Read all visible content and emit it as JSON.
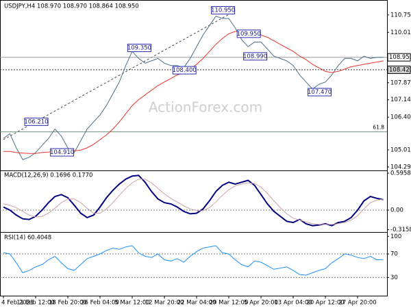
{
  "chart_data": [
    {
      "type": "line",
      "title": "USDJPY,H4 108.970 108.970 108.864 108.950",
      "watermark": "ActionForex.com",
      "ylim": [
        104.17,
        111.24
      ],
      "yticks": [
        {
          "value": 110.75,
          "label": "110.750"
        },
        {
          "value": 110.01,
          "label": "110.010"
        },
        {
          "value": 107.87,
          "label": "107.870"
        },
        {
          "value": 107.145,
          "label": "107.145"
        },
        {
          "value": 106.405,
          "label": "106.405"
        },
        {
          "value": 105.015,
          "label": "105.015"
        },
        {
          "value": 104.29,
          "label": "104.290"
        }
      ],
      "series": [
        {
          "color": "#4a6f84",
          "values": [
            105.5,
            105.7,
            105.1,
            104.6,
            104.7,
            104.9,
            105.2,
            105.5,
            105.9,
            105.6,
            105.1,
            104.9,
            105.4,
            105.9,
            106.2,
            106.5,
            106.9,
            107.4,
            107.9,
            108.6,
            109.2,
            108.9,
            108.7,
            108.8,
            108.9,
            108.7,
            108.6,
            108.6,
            108.5,
            108.9,
            109.4,
            109.9,
            110.3,
            110.7,
            110.6,
            110.6,
            110.2,
            109.7,
            109.4,
            109.6,
            109.6,
            109.3,
            109.0,
            108.9,
            108.8,
            108.6,
            108.2,
            107.9,
            107.6,
            107.8,
            107.9,
            108.2,
            108.6,
            108.9,
            108.9,
            108.8,
            109.0,
            108.9,
            108.95,
            108.95
          ]
        },
        {
          "color": "#e8342c",
          "values": [
            104.95,
            104.95,
            104.9,
            104.88,
            104.86,
            104.86,
            104.9,
            104.92,
            104.97,
            105.0,
            105.0,
            104.98,
            105.0,
            105.1,
            105.25,
            105.45,
            105.65,
            105.9,
            106.2,
            106.55,
            106.9,
            107.15,
            107.35,
            107.55,
            107.75,
            107.9,
            108.05,
            108.2,
            108.3,
            108.45,
            108.65,
            108.9,
            109.2,
            109.5,
            109.75,
            109.95,
            110.05,
            110.05,
            110.0,
            109.95,
            109.9,
            109.8,
            109.65,
            109.5,
            109.35,
            109.2,
            109.0,
            108.85,
            108.65,
            108.5,
            108.35,
            108.3,
            108.35,
            108.45,
            108.55,
            108.6,
            108.65,
            108.7,
            108.75,
            108.8
          ]
        }
      ],
      "annotations": [
        {
          "value": 110.95,
          "label": "110.950"
        },
        {
          "value": 109.35,
          "label": "109.350"
        },
        {
          "value": 108.4,
          "label": "108.400"
        },
        {
          "value": 106.21,
          "label": "106.210"
        },
        {
          "value": 104.91,
          "label": "104.910"
        },
        {
          "value": 109.95,
          "label": "109.950"
        },
        {
          "value": 108.99,
          "label": "108.990"
        },
        {
          "value": 107.47,
          "label": "107.470"
        }
      ],
      "levels": [
        {
          "value": 108.95,
          "label": "108.950"
        },
        {
          "value": 108.42,
          "label": "108.420"
        },
        {
          "value": 105.78,
          "label": "61.8"
        }
      ]
    },
    {
      "type": "line",
      "title": "MACD(12,26,9) 0.1696 0.1770",
      "ylim": [
        -0.342,
        0.618
      ],
      "yticks": [
        0.5958,
        {
          "value": 0,
          "label": "0.00"
        },
        -0.3158
      ],
      "series": [
        {
          "color": "#000080",
          "values": [
            0.05,
            0.0,
            -0.08,
            -0.14,
            -0.15,
            -0.1,
            0.0,
            0.12,
            0.22,
            0.25,
            0.2,
            0.08,
            -0.05,
            -0.12,
            -0.08,
            0.05,
            0.2,
            0.32,
            0.42,
            0.5,
            0.55,
            0.56,
            0.45,
            0.3,
            0.18,
            0.12,
            0.1,
            0.05,
            -0.02,
            -0.06,
            -0.05,
            0.02,
            0.15,
            0.3,
            0.4,
            0.45,
            0.42,
            0.45,
            0.48,
            0.4,
            0.25,
            0.1,
            -0.02,
            -0.1,
            -0.18,
            -0.2,
            -0.15,
            -0.22,
            -0.25,
            -0.24,
            -0.22,
            -0.25,
            -0.2,
            -0.18,
            -0.12,
            0.0,
            0.15,
            0.22,
            0.19,
            0.17
          ]
        },
        {
          "color": "#c9a3a3",
          "values": [
            0.1,
            0.08,
            0.04,
            -0.02,
            -0.08,
            -0.11,
            -0.1,
            -0.05,
            0.03,
            0.12,
            0.18,
            0.18,
            0.12,
            0.03,
            -0.05,
            -0.05,
            0.02,
            0.12,
            0.24,
            0.35,
            0.44,
            0.5,
            0.5,
            0.44,
            0.35,
            0.26,
            0.19,
            0.13,
            0.07,
            0.02,
            -0.01,
            -0.01,
            0.04,
            0.13,
            0.24,
            0.33,
            0.39,
            0.42,
            0.44,
            0.43,
            0.37,
            0.27,
            0.15,
            0.04,
            -0.06,
            -0.13,
            -0.16,
            -0.19,
            -0.22,
            -0.23,
            -0.23,
            -0.23,
            -0.22,
            -0.2,
            -0.16,
            -0.09,
            0.02,
            0.12,
            0.16,
            0.177
          ]
        }
      ]
    },
    {
      "type": "line",
      "title": "RSI(14) 60.4048",
      "ylim": [
        -1,
        105
      ],
      "yticks": [
        100,
        70,
        30
      ],
      "series": [
        {
          "color": "#1e90ff",
          "values": [
            72,
            70,
            55,
            38,
            42,
            48,
            52,
            60,
            66,
            55,
            45,
            42,
            52,
            62,
            66,
            70,
            76,
            80,
            78,
            82,
            84,
            72,
            66,
            64,
            70,
            60,
            58,
            62,
            56,
            66,
            74,
            80,
            82,
            84,
            72,
            70,
            60,
            52,
            48,
            58,
            56,
            50,
            44,
            46,
            48,
            42,
            35,
            34,
            38,
            42,
            45,
            55,
            62,
            70,
            68,
            64,
            62,
            66,
            60,
            60.4
          ]
        }
      ],
      "categories": [
        "4 Feb 2021",
        null,
        null,
        null,
        null,
        "11 Feb 12:00",
        null,
        null,
        null,
        null,
        "18 Feb 20:00",
        null,
        null,
        null,
        null,
        "26 Feb 04:00",
        null,
        null,
        null,
        null,
        "5 Mar 12:00",
        null,
        null,
        null,
        null,
        "12 Mar 20:00",
        null,
        null,
        null,
        null,
        "22 Mar 04:00",
        null,
        null,
        null,
        null,
        "29 Mar 12:00",
        null,
        null,
        null,
        null,
        "5 Apr 20:00",
        null,
        null,
        null,
        null,
        "13 Apr 04:00",
        null,
        null,
        null,
        null,
        "20 Apr 12:00",
        null,
        null,
        null,
        null,
        "27 Apr 20:00",
        null,
        null,
        null,
        null
      ]
    }
  ]
}
